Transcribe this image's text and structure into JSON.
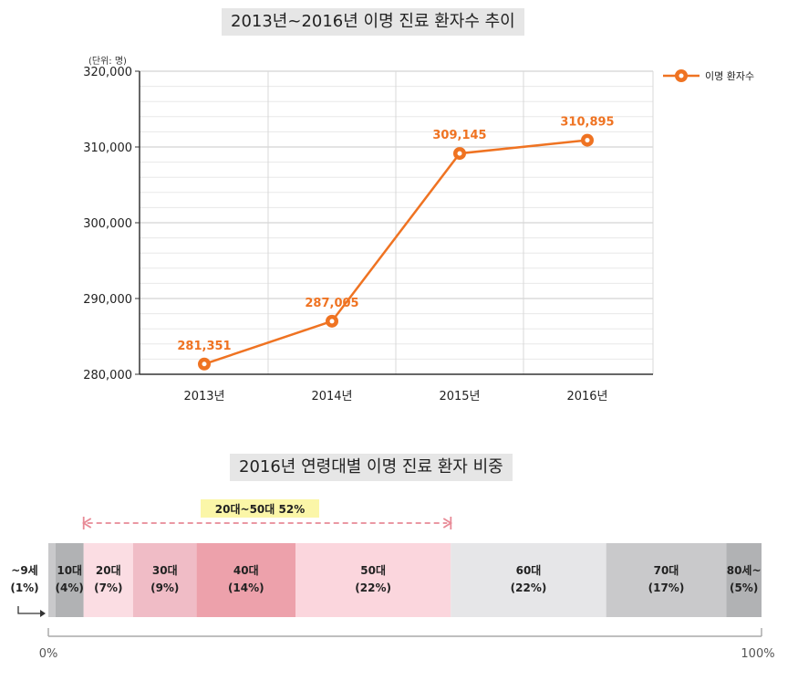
{
  "titles": {
    "line": "2013년~2016년 이명 진료 환자수 추이",
    "bar": "2016년 연령대별 이명 진료 환자 비중"
  },
  "chart_data": [
    {
      "type": "line",
      "unit_label": "(단위: 명)",
      "categories": [
        "2013년",
        "2014년",
        "2015년",
        "2016년"
      ],
      "series": [
        {
          "name": "이명 환자수",
          "values": [
            281351,
            287005,
            309145,
            310895
          ],
          "labels": [
            "281,351",
            "287,005",
            "309,145",
            "310,895"
          ],
          "color": "#ef7322"
        }
      ],
      "yticks": [
        "280,000",
        "290,000",
        "300,000",
        "310,000",
        "320,000"
      ],
      "ylim": [
        280000,
        320000
      ],
      "grid": true,
      "legend": "top-right"
    },
    {
      "type": "bar",
      "stacked": true,
      "segments": [
        {
          "name": "~9세",
          "share": "(1%)",
          "value": 1,
          "color": "#c9c9cb"
        },
        {
          "name": "10대",
          "share": "(4%)",
          "value": 4,
          "color": "#b1b2b4"
        },
        {
          "name": "20대",
          "share": "(7%)",
          "value": 7,
          "color": "#fbdde3"
        },
        {
          "name": "30대",
          "share": "(9%)",
          "value": 9,
          "color": "#f0bcc6"
        },
        {
          "name": "40대",
          "share": "(14%)",
          "value": 14,
          "color": "#eda1ab"
        },
        {
          "name": "50대",
          "share": "(22%)",
          "value": 22,
          "color": "#fbd6dd"
        },
        {
          "name": "60대",
          "share": "(22%)",
          "value": 22,
          "color": "#e6e6e8"
        },
        {
          "name": "70대",
          "share": "(17%)",
          "value": 17,
          "color": "#c9c9cb"
        },
        {
          "name": "80세~",
          "share": "(5%)",
          "value": 5,
          "color": "#b1b2b4"
        }
      ],
      "bracket": {
        "label": "20대~50대 52%",
        "from": "20대",
        "to": "50대"
      },
      "axis": {
        "start": "0%",
        "end": "100%"
      }
    }
  ]
}
